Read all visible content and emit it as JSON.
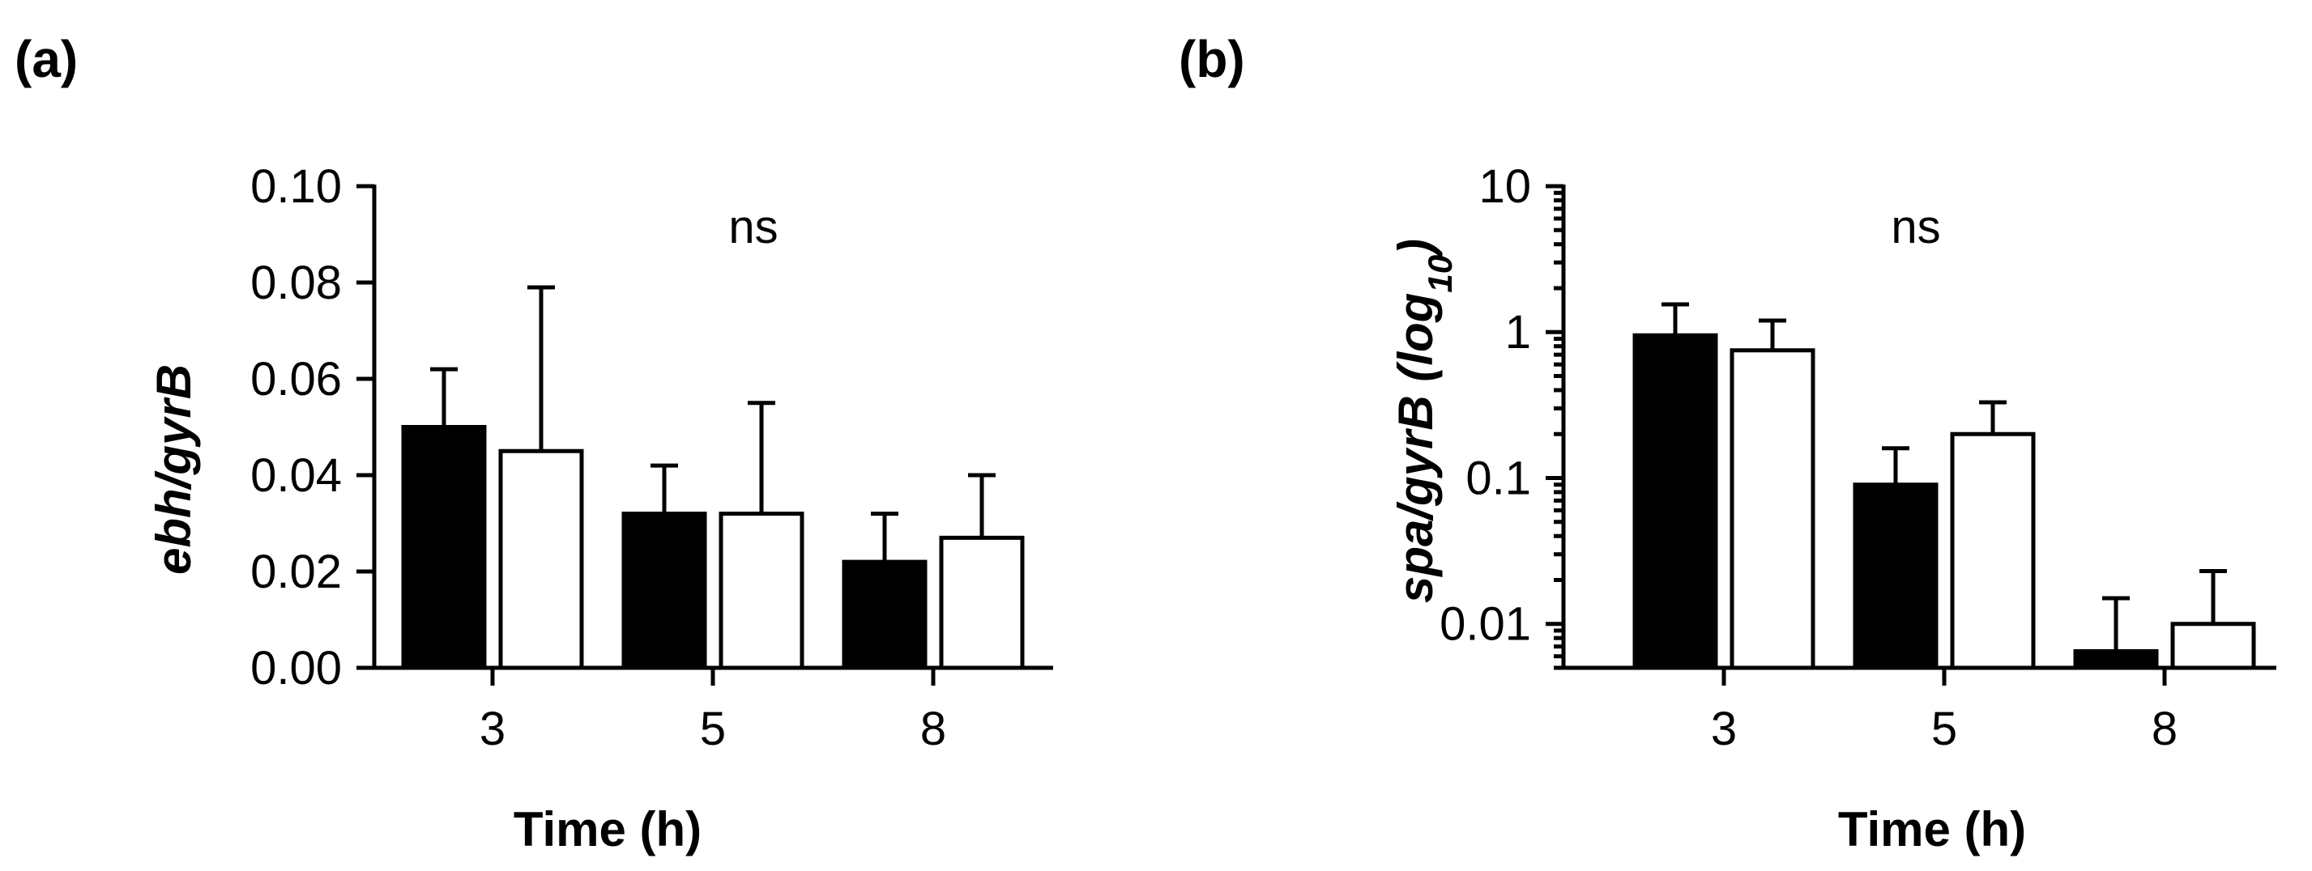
{
  "chart_data": [
    {
      "type": "bar",
      "panel_label": "(a)",
      "categories": [
        "3",
        "5",
        "8"
      ],
      "series": [
        {
          "name": "filled",
          "fill": "#000000",
          "values": [
            0.05,
            0.032,
            0.022
          ],
          "errors": [
            0.012,
            0.01,
            0.01
          ]
        },
        {
          "name": "open",
          "fill": "#ffffff",
          "values": [
            0.045,
            0.032,
            0.027
          ],
          "errors": [
            0.034,
            0.023,
            0.013
          ]
        }
      ],
      "yscale": "linear",
      "ylim": [
        0,
        0.1
      ],
      "yticks": [
        0.0,
        0.02,
        0.04,
        0.06,
        0.08,
        0.1
      ],
      "ytick_labels": [
        "0.00",
        "0.02",
        "0.04",
        "0.06",
        "0.08",
        "0.10"
      ],
      "xlabel": "Time (h)",
      "ylabel": "ebh/gyrB",
      "annotation": "ns"
    },
    {
      "type": "bar",
      "panel_label": "(b)",
      "categories": [
        "3",
        "5",
        "8"
      ],
      "series": [
        {
          "name": "filled",
          "fill": "#000000",
          "values": [
            0.95,
            0.09,
            0.0065
          ],
          "errors": [
            0.6,
            0.07,
            0.0085
          ]
        },
        {
          "name": "open",
          "fill": "#ffffff",
          "values": [
            0.75,
            0.2,
            0.01
          ],
          "errors": [
            0.45,
            0.13,
            0.013
          ]
        }
      ],
      "yscale": "log",
      "ylim": [
        0.005,
        10
      ],
      "yticks": [
        0.01,
        0.1,
        1,
        10
      ],
      "ytick_labels": [
        "0.01",
        "0.1",
        "1",
        "10"
      ],
      "xlabel": "Time (h)",
      "ylabel_main": "spa/gyrB (log",
      "ylabel_sub": "10",
      "ylabel_close": ")",
      "annotation": "ns"
    }
  ]
}
